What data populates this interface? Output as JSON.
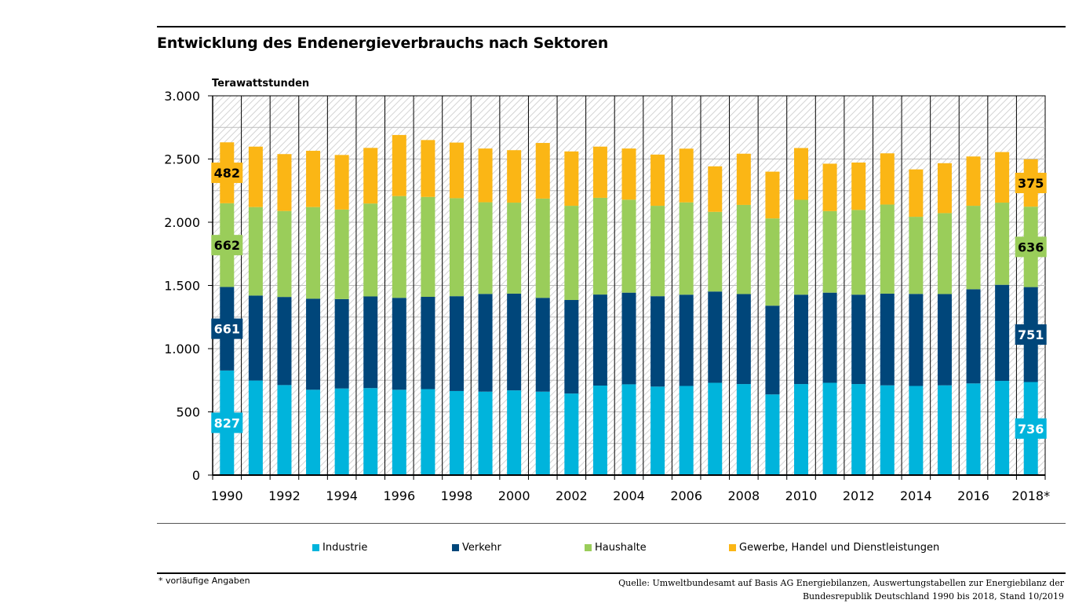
{
  "title": "Entwicklung des Endenergieverbrauchs nach Sektoren",
  "footnote": "* vorläufige Angaben",
  "source": {
    "line1": "Quelle: Umweltbundesamt auf Basis AG Energiebilanzen, Auswertungstabellen zur Energiebilanz der",
    "line2": "Bundesrepublik Deutschland 1990 bis 2018, Stand 10/2019"
  },
  "colors": {
    "industrie": "#00b4dc",
    "verkehr": "#00467a",
    "haushalte": "#9acd5a",
    "gewerbe": "#fbb615"
  },
  "chart_data": {
    "type": "bar",
    "stacked": true,
    "ylabel": "Terawattstunden",
    "ylim": [
      0,
      3000
    ],
    "yticks": [
      0,
      500,
      1000,
      1500,
      2000,
      2500,
      3000
    ],
    "ytick_labels": [
      "0",
      "500",
      "1.000",
      "1.500",
      "2.000",
      "2.500",
      "3.000"
    ],
    "grid": true,
    "legend": "bottom",
    "categories": [
      "1990",
      "1991",
      "1992",
      "1993",
      "1994",
      "1995",
      "1996",
      "1997",
      "1998",
      "1999",
      "2000",
      "2001",
      "2002",
      "2003",
      "2004",
      "2005",
      "2006",
      "2007",
      "2008",
      "2009",
      "2010",
      "2011",
      "2012",
      "2013",
      "2014",
      "2015",
      "2016",
      "2017",
      "2018*"
    ],
    "xtick_labels": [
      "1990",
      "",
      "1992",
      "",
      "1994",
      "",
      "1996",
      "",
      "1998",
      "",
      "2000",
      "",
      "2002",
      "",
      "2004",
      "",
      "2006",
      "",
      "2008",
      "",
      "2010",
      "",
      "2012",
      "",
      "2014",
      "",
      "2016",
      "",
      "2018*"
    ],
    "series": [
      {
        "name": "Industrie",
        "key": "industrie",
        "values": [
          827,
          748,
          712,
          675,
          685,
          688,
          675,
          680,
          665,
          660,
          670,
          660,
          645,
          708,
          718,
          700,
          705,
          730,
          720,
          638,
          720,
          730,
          720,
          710,
          705,
          710,
          725,
          745,
          736
        ]
      },
      {
        "name": "Verkehr",
        "key": "verkehr",
        "values": [
          661,
          672,
          697,
          720,
          707,
          725,
          727,
          730,
          750,
          773,
          765,
          742,
          740,
          720,
          725,
          715,
          722,
          722,
          712,
          702,
          707,
          713,
          707,
          725,
          728,
          722,
          745,
          760,
          751
        ]
      },
      {
        "name": "Haushalte",
        "key": "haushalte",
        "values": [
          662,
          700,
          680,
          725,
          708,
          735,
          805,
          790,
          775,
          725,
          720,
          785,
          745,
          765,
          735,
          715,
          730,
          630,
          705,
          690,
          750,
          645,
          670,
          705,
          610,
          640,
          660,
          650,
          636
        ]
      },
      {
        "name": "Gewerbe, Handel und Dienstleistungen",
        "key": "gewerbe",
        "values": [
          482,
          478,
          450,
          445,
          432,
          440,
          483,
          450,
          440,
          425,
          415,
          440,
          430,
          405,
          405,
          405,
          425,
          360,
          405,
          370,
          410,
          375,
          375,
          405,
          375,
          395,
          390,
          400,
          375
        ]
      }
    ],
    "data_labels": {
      "1990": {
        "industrie": "827",
        "verkehr": "661",
        "haushalte": "662",
        "gewerbe": "482"
      },
      "2018*": {
        "industrie": "736",
        "verkehr": "751",
        "haushalte": "636",
        "gewerbe": "375"
      }
    }
  }
}
